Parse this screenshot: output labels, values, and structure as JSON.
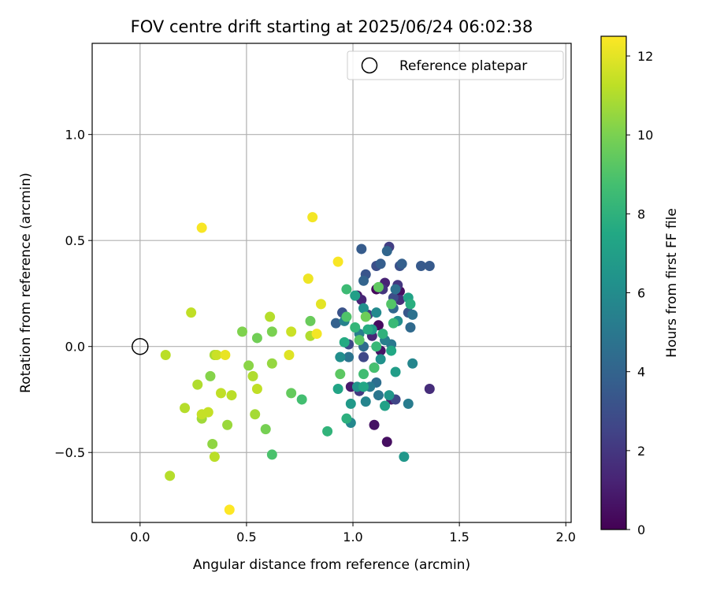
{
  "chart_data": {
    "type": "scatter",
    "title": "FOV centre drift starting at 2025/06/24 06:02:38",
    "xlabel": "Angular distance from reference (arcmin)",
    "ylabel": "Rotation from reference (arcmin)",
    "xlim": [
      -0.225,
      2.025
    ],
    "ylim": [
      -0.83,
      1.43
    ],
    "x_ticks": [
      0.0,
      0.5,
      1.0,
      1.5,
      2.0
    ],
    "x_tick_labels": [
      "0.0",
      "0.5",
      "1.0",
      "1.5",
      "2.0"
    ],
    "y_ticks": [
      -0.5,
      0.0,
      0.5,
      1.0
    ],
    "y_tick_labels": [
      "−0.5",
      "0.0",
      "0.5",
      "1.0"
    ],
    "grid": true,
    "colormap": "viridis",
    "colorbar": {
      "label": "Hours from first FF file",
      "range": [
        0,
        12.5
      ],
      "ticks": [
        0,
        2,
        4,
        6,
        8,
        10,
        12
      ],
      "tick_labels": [
        "0",
        "2",
        "4",
        "6",
        "8",
        "10",
        "12"
      ]
    },
    "reference_point": {
      "x": 0.0,
      "y": 0.0,
      "label": "Reference platepar"
    },
    "legend_position": "top-right",
    "points": [
      {
        "x": 1.11,
        "y": 0.27,
        "c": 0.3
      },
      {
        "x": 1.16,
        "y": -0.45,
        "c": 0.5
      },
      {
        "x": 1.1,
        "y": -0.37,
        "c": 0.6
      },
      {
        "x": 1.13,
        "y": -0.02,
        "c": 0.7
      },
      {
        "x": 1.02,
        "y": 0.24,
        "c": 0.8
      },
      {
        "x": 1.22,
        "y": 0.26,
        "c": 0.5
      },
      {
        "x": 1.12,
        "y": 0.1,
        "c": 0.4
      },
      {
        "x": 0.99,
        "y": -0.19,
        "c": 0.9
      },
      {
        "x": 1.18,
        "y": -0.25,
        "c": 1.0
      },
      {
        "x": 1.15,
        "y": 0.3,
        "c": 1.2
      },
      {
        "x": 1.04,
        "y": 0.22,
        "c": 1.3
      },
      {
        "x": 1.09,
        "y": 0.05,
        "c": 1.4
      },
      {
        "x": 1.36,
        "y": -0.2,
        "c": 1.6
      },
      {
        "x": 1.22,
        "y": 0.22,
        "c": 1.7
      },
      {
        "x": 1.14,
        "y": 0.27,
        "c": 1.9
      },
      {
        "x": 1.21,
        "y": 0.29,
        "c": 2.0
      },
      {
        "x": 1.03,
        "y": -0.21,
        "c": 2.1
      },
      {
        "x": 1.07,
        "y": 0.15,
        "c": 2.2
      },
      {
        "x": 1.17,
        "y": 0.47,
        "c": 2.3
      },
      {
        "x": 1.1,
        "y": -0.1,
        "c": 2.5
      },
      {
        "x": 1.2,
        "y": -0.25,
        "c": 2.6
      },
      {
        "x": 1.05,
        "y": -0.05,
        "c": 2.7
      },
      {
        "x": 0.98,
        "y": 0.01,
        "c": 2.8
      },
      {
        "x": 1.19,
        "y": 0.23,
        "c": 2.9
      },
      {
        "x": 1.11,
        "y": 0.38,
        "c": 3.0
      },
      {
        "x": 1.22,
        "y": 0.38,
        "c": 3.1
      },
      {
        "x": 0.95,
        "y": 0.16,
        "c": 3.2
      },
      {
        "x": 1.06,
        "y": 0.34,
        "c": 3.3
      },
      {
        "x": 1.26,
        "y": 0.16,
        "c": 3.4
      },
      {
        "x": 1.32,
        "y": 0.38,
        "c": 3.5
      },
      {
        "x": 1.36,
        "y": 0.38,
        "c": 3.5
      },
      {
        "x": 1.04,
        "y": 0.46,
        "c": 3.6
      },
      {
        "x": 1.13,
        "y": 0.39,
        "c": 3.7
      },
      {
        "x": 1.23,
        "y": 0.39,
        "c": 3.8
      },
      {
        "x": 0.92,
        "y": 0.11,
        "c": 3.9
      },
      {
        "x": 1.05,
        "y": 0.31,
        "c": 4.0
      },
      {
        "x": 1.16,
        "y": 0.45,
        "c": 4.1
      },
      {
        "x": 1.19,
        "y": 0.18,
        "c": 4.2
      },
      {
        "x": 1.27,
        "y": 0.09,
        "c": 4.3
      },
      {
        "x": 1.05,
        "y": 0.0,
        "c": 4.4
      },
      {
        "x": 1.11,
        "y": -0.17,
        "c": 4.5
      },
      {
        "x": 1.2,
        "y": 0.27,
        "c": 4.6
      },
      {
        "x": 1.28,
        "y": 0.15,
        "c": 4.7
      },
      {
        "x": 0.98,
        "y": -0.05,
        "c": 4.8
      },
      {
        "x": 1.12,
        "y": -0.23,
        "c": 4.9
      },
      {
        "x": 1.18,
        "y": 0.01,
        "c": 5.0
      },
      {
        "x": 1.08,
        "y": -0.19,
        "c": 5.1
      },
      {
        "x": 1.26,
        "y": -0.27,
        "c": 5.2
      },
      {
        "x": 1.03,
        "y": 0.06,
        "c": 5.3
      },
      {
        "x": 1.15,
        "y": 0.03,
        "c": 5.4
      },
      {
        "x": 0.96,
        "y": 0.12,
        "c": 5.5
      },
      {
        "x": 1.06,
        "y": -0.26,
        "c": 5.6
      },
      {
        "x": 1.28,
        "y": -0.08,
        "c": 5.7
      },
      {
        "x": 0.99,
        "y": -0.36,
        "c": 5.8
      },
      {
        "x": 1.11,
        "y": 0.16,
        "c": 5.9
      },
      {
        "x": 1.21,
        "y": 0.12,
        "c": 6.0
      },
      {
        "x": 0.94,
        "y": -0.05,
        "c": 6.1
      },
      {
        "x": 1.05,
        "y": 0.18,
        "c": 6.2
      },
      {
        "x": 1.13,
        "y": -0.06,
        "c": 6.3
      },
      {
        "x": 1.02,
        "y": -0.19,
        "c": 6.4
      },
      {
        "x": 1.17,
        "y": -0.23,
        "c": 6.5
      },
      {
        "x": 1.24,
        "y": -0.52,
        "c": 6.6
      },
      {
        "x": 0.99,
        "y": -0.27,
        "c": 6.7
      },
      {
        "x": 1.09,
        "y": 0.08,
        "c": 6.8
      },
      {
        "x": 1.2,
        "y": -0.12,
        "c": 6.9
      },
      {
        "x": 1.01,
        "y": 0.24,
        "c": 7.0
      },
      {
        "x": 1.15,
        "y": -0.28,
        "c": 7.1
      },
      {
        "x": 1.26,
        "y": 0.23,
        "c": 7.2
      },
      {
        "x": 0.93,
        "y": -0.2,
        "c": 7.3
      },
      {
        "x": 1.05,
        "y": -0.19,
        "c": 7.4
      },
      {
        "x": 1.18,
        "y": -0.02,
        "c": 7.5
      },
      {
        "x": 0.96,
        "y": 0.02,
        "c": 7.6
      },
      {
        "x": 1.07,
        "y": 0.08,
        "c": 7.7
      },
      {
        "x": 1.27,
        "y": 0.2,
        "c": 7.8
      },
      {
        "x": 0.97,
        "y": -0.34,
        "c": 7.9
      },
      {
        "x": 1.14,
        "y": 0.06,
        "c": 8.0
      },
      {
        "x": 0.88,
        "y": -0.4,
        "c": 8.1
      },
      {
        "x": 1.01,
        "y": 0.09,
        "c": 8.2
      },
      {
        "x": 1.11,
        "y": 0.0,
        "c": 8.3
      },
      {
        "x": 1.19,
        "y": 0.11,
        "c": 8.4
      },
      {
        "x": 0.97,
        "y": 0.27,
        "c": 8.5
      },
      {
        "x": 1.05,
        "y": -0.13,
        "c": 8.6
      },
      {
        "x": 0.76,
        "y": -0.25,
        "c": 8.7
      },
      {
        "x": 1.1,
        "y": -0.1,
        "c": 8.8
      },
      {
        "x": 0.62,
        "y": -0.51,
        "c": 8.9
      },
      {
        "x": 0.97,
        "y": 0.14,
        "c": 9.0
      },
      {
        "x": 1.18,
        "y": 0.2,
        "c": 9.1
      },
      {
        "x": 1.03,
        "y": 0.03,
        "c": 9.2
      },
      {
        "x": 0.94,
        "y": -0.13,
        "c": 9.3
      },
      {
        "x": 1.12,
        "y": 0.28,
        "c": 9.4
      },
      {
        "x": 0.71,
        "y": -0.22,
        "c": 9.5
      },
      {
        "x": 0.8,
        "y": 0.12,
        "c": 9.6
      },
      {
        "x": 1.06,
        "y": 0.14,
        "c": 9.7
      },
      {
        "x": 0.55,
        "y": 0.04,
        "c": 9.8
      },
      {
        "x": 0.59,
        "y": -0.39,
        "c": 9.9
      },
      {
        "x": 0.62,
        "y": 0.07,
        "c": 10.0
      },
      {
        "x": 0.48,
        "y": 0.07,
        "c": 10.1
      },
      {
        "x": 0.33,
        "y": -0.14,
        "c": 10.2
      },
      {
        "x": 0.51,
        "y": -0.09,
        "c": 10.3
      },
      {
        "x": 0.34,
        "y": -0.46,
        "c": 10.4
      },
      {
        "x": 0.62,
        "y": -0.08,
        "c": 10.5
      },
      {
        "x": 0.41,
        "y": -0.37,
        "c": 10.6
      },
      {
        "x": 0.29,
        "y": -0.34,
        "c": 10.7
      },
      {
        "x": 0.54,
        "y": -0.32,
        "c": 10.8
      },
      {
        "x": 0.35,
        "y": -0.04,
        "c": 10.9
      },
      {
        "x": 0.8,
        "y": 0.05,
        "c": 11.0
      },
      {
        "x": 0.53,
        "y": -0.14,
        "c": 11.0
      },
      {
        "x": 0.27,
        "y": -0.18,
        "c": 11.0
      },
      {
        "x": 0.14,
        "y": -0.61,
        "c": 11.1
      },
      {
        "x": 0.21,
        "y": -0.29,
        "c": 11.1
      },
      {
        "x": 0.61,
        "y": 0.14,
        "c": 11.1
      },
      {
        "x": 0.43,
        "y": -0.23,
        "c": 11.2
      },
      {
        "x": 0.12,
        "y": -0.04,
        "c": 11.2
      },
      {
        "x": 0.35,
        "y": -0.52,
        "c": 11.2
      },
      {
        "x": 0.38,
        "y": -0.22,
        "c": 11.3
      },
      {
        "x": 0.24,
        "y": 0.16,
        "c": 11.3
      },
      {
        "x": 0.55,
        "y": -0.2,
        "c": 11.3
      },
      {
        "x": 0.32,
        "y": -0.31,
        "c": 11.4
      },
      {
        "x": 0.29,
        "y": -0.32,
        "c": 11.4
      },
      {
        "x": 0.71,
        "y": 0.07,
        "c": 11.5
      },
      {
        "x": 0.36,
        "y": -0.04,
        "c": 11.5
      },
      {
        "x": 0.7,
        "y": -0.04,
        "c": 11.9
      },
      {
        "x": 0.85,
        "y": 0.2,
        "c": 12.0
      },
      {
        "x": 0.4,
        "y": -0.04,
        "c": 12.1
      },
      {
        "x": 0.79,
        "y": 0.32,
        "c": 12.2
      },
      {
        "x": 0.81,
        "y": 0.61,
        "c": 12.3
      },
      {
        "x": 0.83,
        "y": 0.06,
        "c": 12.3
      },
      {
        "x": 0.93,
        "y": 0.4,
        "c": 12.4
      },
      {
        "x": 0.29,
        "y": 0.56,
        "c": 12.4
      },
      {
        "x": 0.42,
        "y": -0.77,
        "c": 12.5
      }
    ]
  }
}
